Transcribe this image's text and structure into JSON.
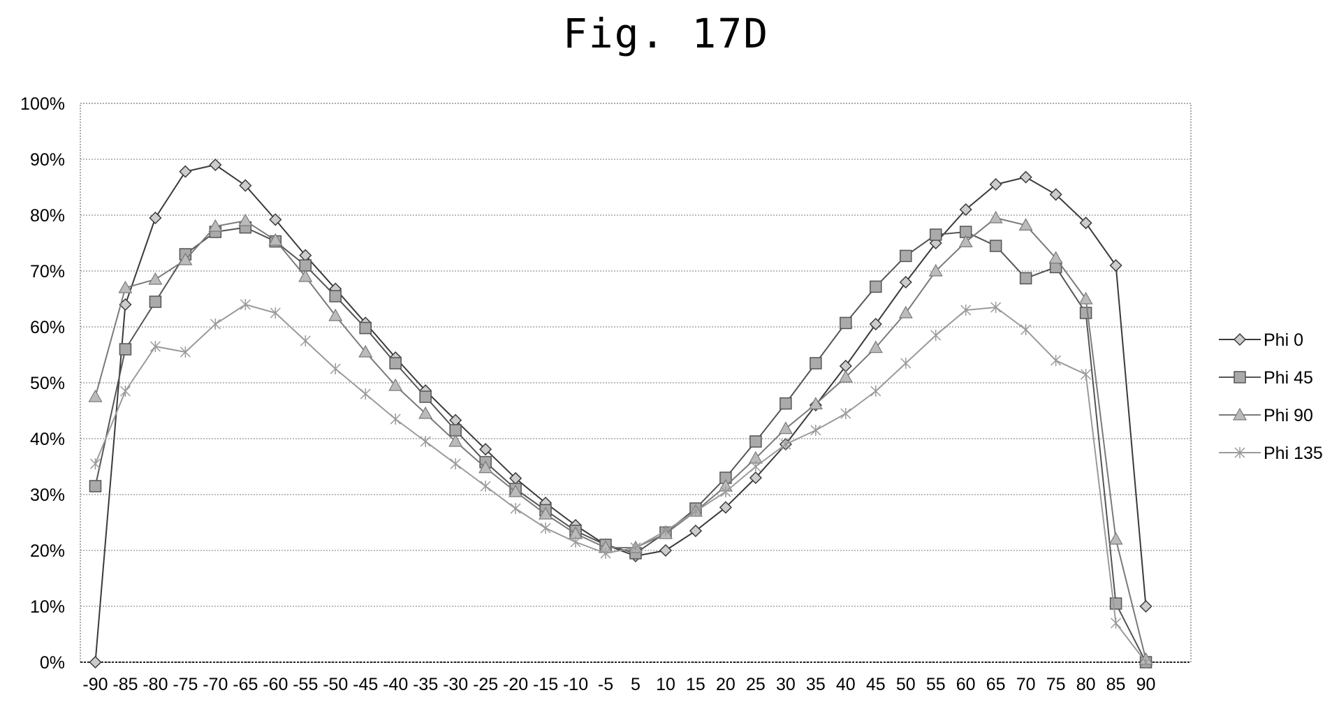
{
  "figure": {
    "title": "Fig. 17D"
  },
  "chart_data": {
    "type": "line",
    "title": "",
    "xlabel": "",
    "ylabel": "",
    "categories": [
      -90,
      -85,
      -80,
      -75,
      -70,
      -65,
      -60,
      -55,
      -50,
      -45,
      -40,
      -35,
      -30,
      -25,
      -20,
      -15,
      -10,
      -5,
      5,
      10,
      15,
      20,
      25,
      30,
      35,
      40,
      45,
      50,
      55,
      60,
      65,
      70,
      75,
      80,
      85,
      90
    ],
    "ylim": [
      0,
      100
    ],
    "yticks": [
      "0%",
      "10%",
      "20%",
      "30%",
      "40%",
      "50%",
      "60%",
      "70%",
      "80%",
      "90%",
      "100%"
    ],
    "grid": true,
    "legend_position": "right",
    "series": [
      {
        "name": "Phi 0",
        "marker": "diamond",
        "color": "#3a3a3a",
        "values": [
          0,
          64,
          79.5,
          87.8,
          89,
          85.3,
          79.2,
          72.8,
          66.8,
          60.7,
          54.5,
          48.6,
          43.3,
          38.1,
          32.9,
          28.5,
          24.5,
          21,
          19,
          20,
          23.5,
          27.7,
          33,
          39,
          46,
          53,
          60.5,
          68,
          75,
          81,
          85.5,
          86.8,
          83.7,
          78.6,
          71,
          10
        ]
      },
      {
        "name": "Phi 45",
        "marker": "square",
        "color": "#555555",
        "values": [
          31.5,
          56,
          64.5,
          73,
          77,
          77.8,
          75.3,
          71,
          65.5,
          59.8,
          53.5,
          47.5,
          41.5,
          35.8,
          31,
          27.2,
          23.5,
          21,
          19.5,
          23.2,
          27.5,
          33,
          39.5,
          46.3,
          53.5,
          60.7,
          67.2,
          72.7,
          76.5,
          77,
          74.5,
          68.7,
          70.7,
          62.5,
          10.5,
          0
        ]
      },
      {
        "name": "Phi 90",
        "marker": "triangle",
        "color": "#7a7a7a",
        "values": [
          47.5,
          67,
          68.5,
          72,
          78,
          79,
          75.5,
          69,
          62,
          55.5,
          49.5,
          44.5,
          39.5,
          34.8,
          30.5,
          26.5,
          23,
          20.5,
          20.5,
          23,
          27,
          31.5,
          36.5,
          41.8,
          46.2,
          51,
          56.3,
          62.5,
          70,
          75.2,
          79.5,
          78.2,
          72.3,
          65,
          22,
          0.5
        ]
      },
      {
        "name": "Phi 135",
        "marker": "star",
        "color": "#9a9a9a",
        "values": [
          35.5,
          48.5,
          56.5,
          55.5,
          60.5,
          64,
          62.5,
          57.5,
          52.5,
          48,
          43.5,
          39.5,
          35.5,
          31.5,
          27.5,
          24,
          21.5,
          19.5,
          20.5,
          23.5,
          27,
          30.5,
          35,
          39,
          41.5,
          44.5,
          48.5,
          53.5,
          58.5,
          63,
          63.5,
          59.5,
          54,
          51.5,
          7,
          0
        ]
      }
    ]
  }
}
